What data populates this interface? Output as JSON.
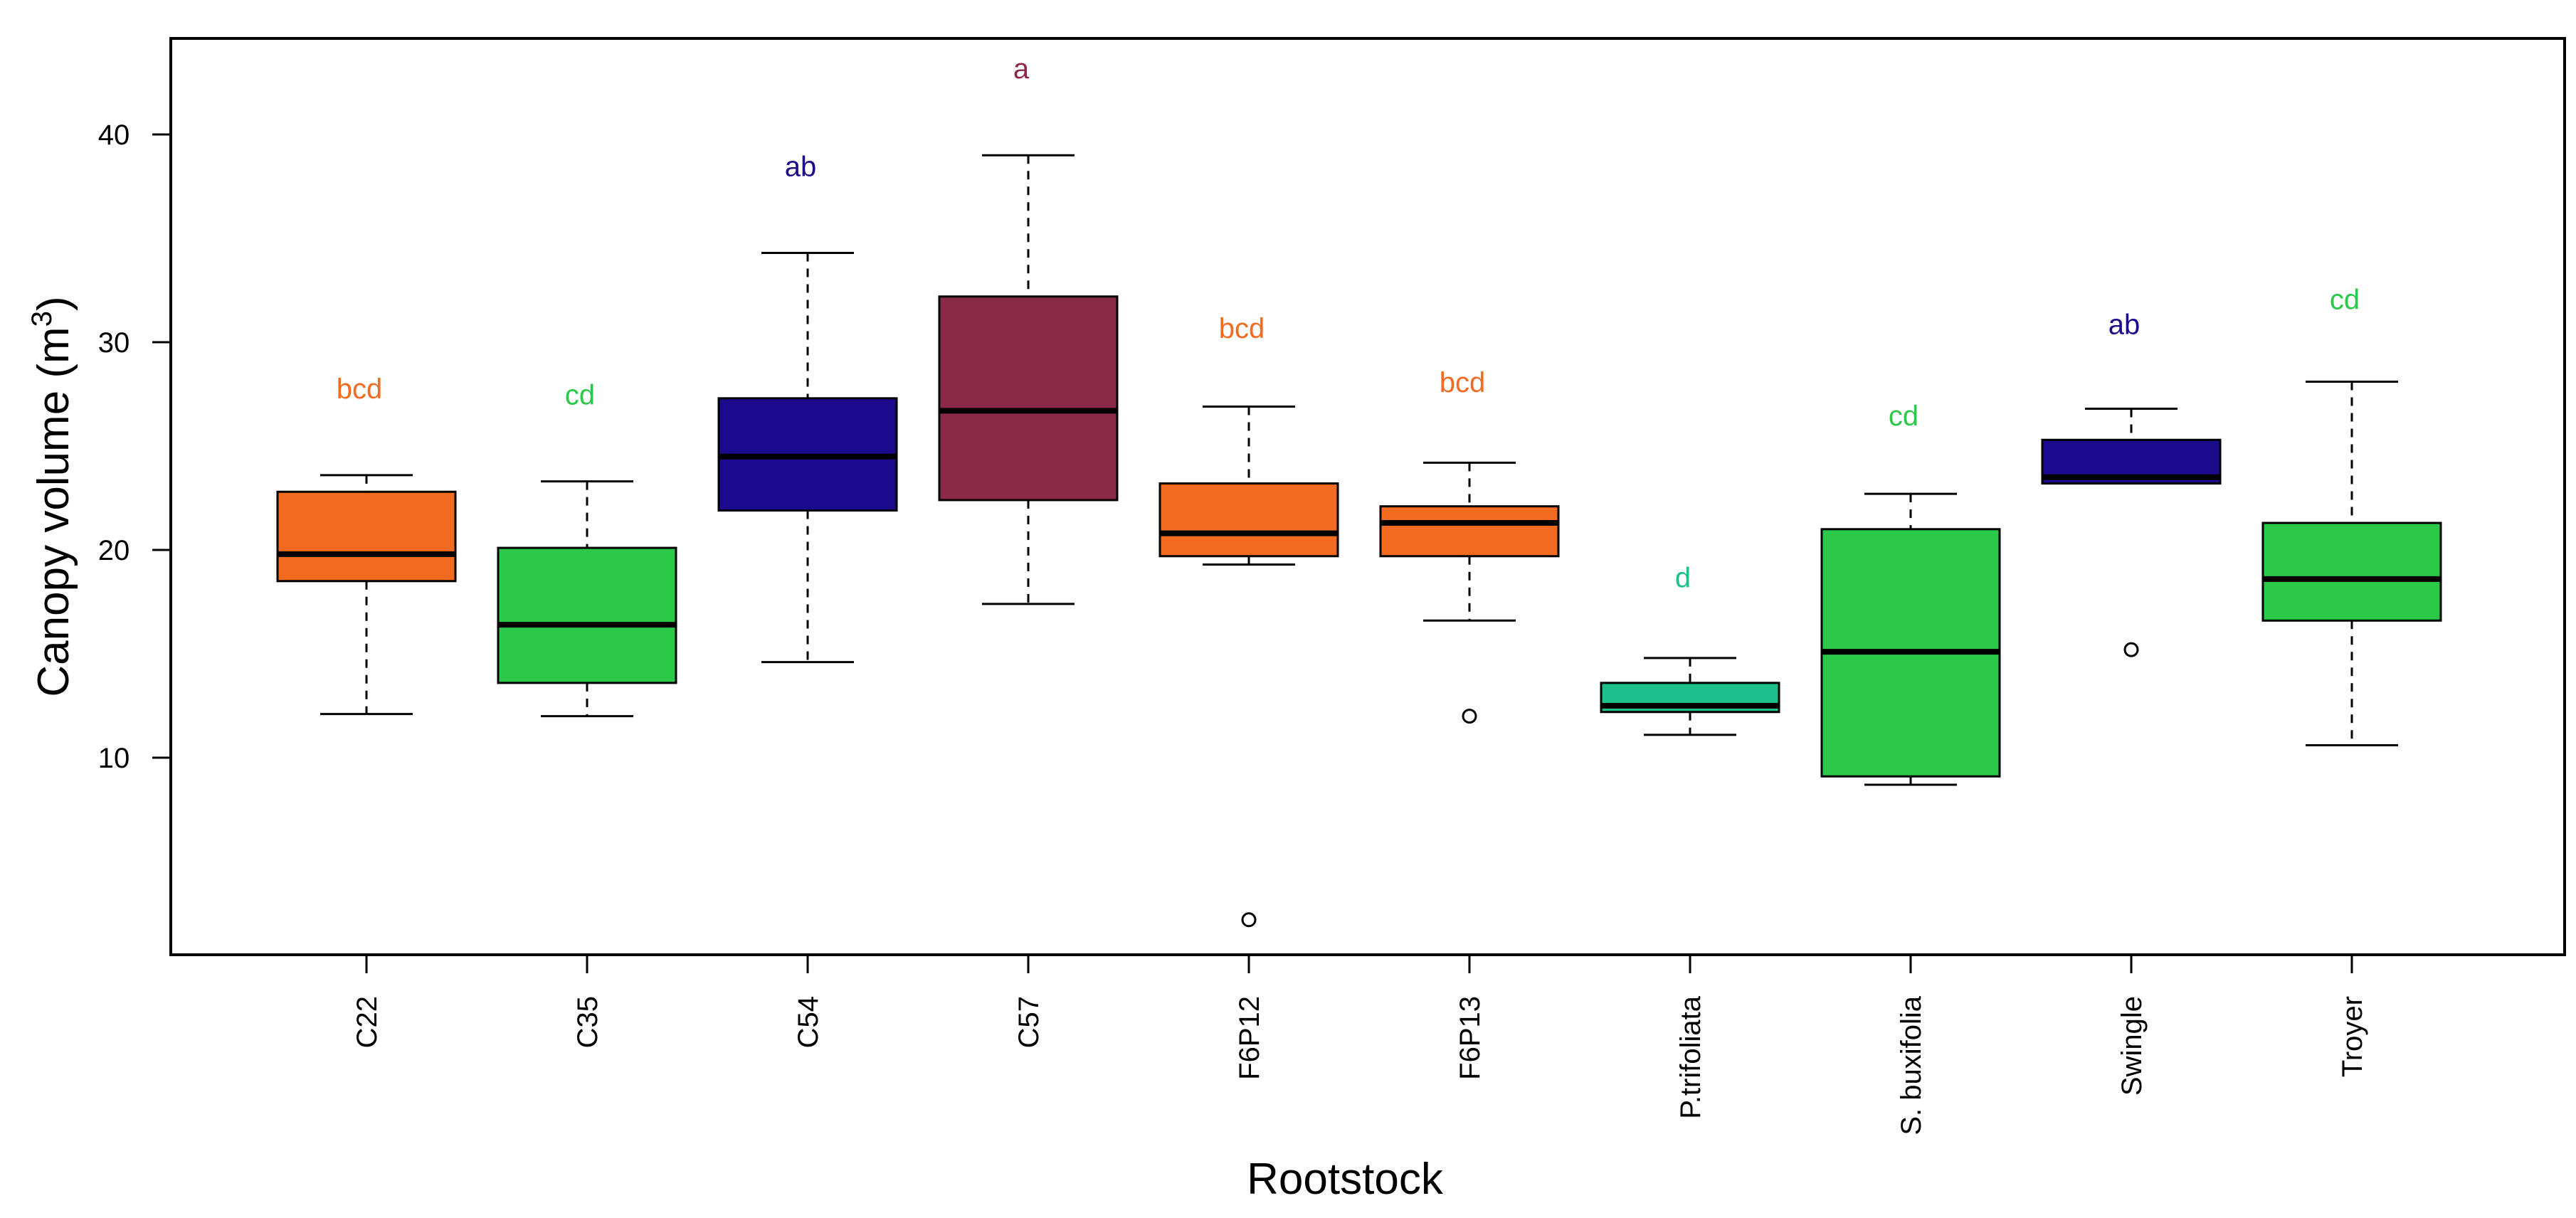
{
  "chart_data": {
    "type": "boxplot",
    "title": "",
    "xlabel": "Rootstock",
    "ylabel": "Canopy volume (m",
    "ylabel_superscript": "3",
    "ylabel_suffix": ")",
    "ylim": [
      0,
      44
    ],
    "yticks": [
      10,
      20,
      30,
      40
    ],
    "ytick_labels": [
      "10",
      "20",
      "30",
      "40"
    ],
    "grid": false,
    "categories": [
      "C22",
      "C35",
      "C54",
      "C57",
      "F6P12",
      "F6P13",
      "P.trifoliata",
      "S. buxifolia",
      "Swingle",
      "Troyer"
    ],
    "boxes": [
      {
        "category": "C22",
        "whisker_low": 12.1,
        "q1": 18.5,
        "median": 19.8,
        "q3": 22.8,
        "whisker_high": 23.6,
        "outliers": [],
        "color": "#F26B21",
        "group": "bcd",
        "group_color": "#F26B21"
      },
      {
        "category": "C35",
        "whisker_low": 12.0,
        "q1": 13.6,
        "median": 16.4,
        "q3": 20.1,
        "whisker_high": 23.3,
        "outliers": [],
        "color": "#2CC84A",
        "group": "cd",
        "group_color": "#2CC84A"
      },
      {
        "category": "C54",
        "whisker_low": 14.6,
        "q1": 21.9,
        "median": 24.5,
        "q3": 27.3,
        "whisker_high": 34.3,
        "outliers": [],
        "color": "#1C0A8C",
        "group": "ab",
        "group_color": "#1C0A8C"
      },
      {
        "category": "C57",
        "whisker_low": 17.4,
        "q1": 22.4,
        "median": 26.7,
        "q3": 32.2,
        "whisker_high": 39.0,
        "outliers": [],
        "color": "#8B2A48",
        "group": "a",
        "group_color": "#8B2A48"
      },
      {
        "category": "F6P12",
        "whisker_low": 19.3,
        "q1": 19.7,
        "median": 20.8,
        "q3": 23.2,
        "whisker_high": 26.9,
        "outliers": [
          2.2
        ],
        "color": "#F26B21",
        "group": "bcd",
        "group_color": "#F26B21"
      },
      {
        "category": "F6P13",
        "whisker_low": 16.6,
        "q1": 19.7,
        "median": 21.3,
        "q3": 22.1,
        "whisker_high": 24.2,
        "outliers": [
          12.0
        ],
        "color": "#F26B21",
        "group": "bcd",
        "group_color": "#F26B21"
      },
      {
        "category": "P.trifoliata",
        "whisker_low": 11.1,
        "q1": 12.2,
        "median": 12.5,
        "q3": 13.6,
        "whisker_high": 14.8,
        "outliers": [],
        "color": "#1CC08A",
        "group": "d",
        "group_color": "#1CC08A"
      },
      {
        "category": "S. buxifolia",
        "whisker_low": 8.7,
        "q1": 9.1,
        "median": 15.1,
        "q3": 21.0,
        "whisker_high": 22.7,
        "outliers": [],
        "color": "#2CC84A",
        "group": "cd",
        "group_color": "#2CC84A"
      },
      {
        "category": "Swingle",
        "whisker_low": 23.2,
        "q1": 23.2,
        "median": 23.5,
        "q3": 25.3,
        "whisker_high": 26.8,
        "outliers": [
          15.2
        ],
        "color": "#1C0A8C",
        "group": "ab",
        "group_color": "#1C0A8C"
      },
      {
        "category": "Troyer",
        "whisker_low": 10.6,
        "q1": 16.6,
        "median": 18.6,
        "q3": 21.3,
        "whisker_high": 28.1,
        "outliers": [],
        "color": "#2CC84A",
        "group": "cd",
        "group_color": "#2CC84A"
      }
    ],
    "significance_label_values": [
      27.3,
      27.0,
      38.0,
      42.7,
      30.2,
      27.6,
      18.2,
      26.0,
      30.4,
      31.6
    ]
  }
}
